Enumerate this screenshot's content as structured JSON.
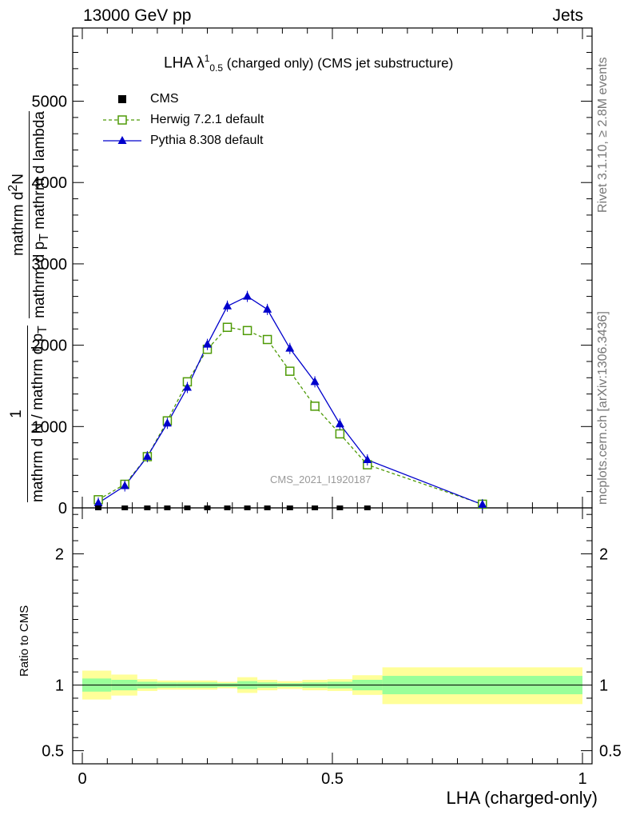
{
  "header": {
    "left": "13000 GeV pp",
    "right": "Jets"
  },
  "side_labels": {
    "rivet": "Rivet 3.1.10, ≥ 2.8M events",
    "mcplots": "mcplots.cern.ch [arXiv:1306.3436]"
  },
  "title": {
    "prefix": "LHA λ",
    "sup": "1",
    "sub": "0.5",
    "rest": " (charged only) (CMS jet substructure)"
  },
  "watermark": "CMS_2021_I1920187",
  "ylabel_main": {
    "one_num": "1",
    "one_den": "mathrm d N / mathrm d p",
    "one_den_sub": "T",
    "num": "mathrm d",
    "num_sup": "2",
    "num_tail": "N",
    "den": "mathrm d p",
    "den_sub": "T",
    "den_tail": " mathrm d lambda"
  },
  "ylabel_ratio": "Ratio to CMS",
  "xlabel": "LHA (charged-only)",
  "colors": {
    "cms": "#000000",
    "herwig": "#4e9a06",
    "pythia": "#0000cc",
    "band_inner": "#99ff99",
    "band_outer": "#ffff99"
  },
  "chart_data": [
    {
      "type": "line",
      "panel": "main",
      "xlim": [
        0,
        1
      ],
      "ylim": [
        0,
        5900
      ],
      "yticks": [
        0,
        1000,
        2000,
        3000,
        4000,
        5000
      ],
      "ytick_labels": [
        "0",
        "1000",
        "2000",
        "3000",
        "4000",
        "5000"
      ],
      "legend": {
        "position": "top-left",
        "entries": [
          "CMS",
          "Herwig 7.2.1 default",
          "Pythia 8.308 default"
        ]
      },
      "series": [
        {
          "name": "CMS",
          "marker": "filled-square",
          "x": [
            0.032,
            0.085,
            0.13,
            0.17,
            0.21,
            0.25,
            0.29,
            0.33,
            0.37,
            0.415,
            0.465,
            0.515,
            0.57
          ],
          "values": [
            0,
            0,
            0,
            0,
            0,
            0,
            0,
            0,
            0,
            0,
            0,
            0,
            0
          ]
        },
        {
          "name": "Herwig 7.2.1 default",
          "marker": "open-square",
          "x": [
            0.032,
            0.085,
            0.13,
            0.17,
            0.21,
            0.25,
            0.29,
            0.33,
            0.37,
            0.415,
            0.465,
            0.515,
            0.57,
            0.8
          ],
          "values": [
            100,
            290,
            630,
            1070,
            1550,
            1950,
            2220,
            2180,
            2070,
            1680,
            1250,
            910,
            530,
            45
          ]
        },
        {
          "name": "Pythia 8.308 default",
          "marker": "filled-triangle",
          "x": [
            0.032,
            0.085,
            0.13,
            0.17,
            0.21,
            0.25,
            0.29,
            0.33,
            0.37,
            0.415,
            0.465,
            0.515,
            0.57,
            0.8
          ],
          "values": [
            60,
            270,
            630,
            1040,
            1480,
            2010,
            2480,
            2600,
            2440,
            1960,
            1550,
            1030,
            590,
            40
          ]
        }
      ]
    },
    {
      "type": "area",
      "panel": "ratio",
      "ylabel": "Ratio to CMS",
      "xlabel": "LHA (charged-only)",
      "xlim": [
        0,
        1
      ],
      "ylim": [
        0.4,
        2.35
      ],
      "xticks": [
        0,
        0.5,
        1
      ],
      "xtick_labels": [
        "0",
        "0.5",
        "1"
      ],
      "yticks": [
        0.5,
        1,
        2
      ],
      "ytick_labels": [
        "0.5",
        "1",
        "2"
      ],
      "reference": 1,
      "bins": [
        {
          "x_lo": 0.0,
          "x_hi": 0.058,
          "inner": [
            0.95,
            1.05
          ],
          "outer": [
            0.89,
            1.11
          ]
        },
        {
          "x_lo": 0.058,
          "x_hi": 0.11,
          "inner": [
            0.96,
            1.04
          ],
          "outer": [
            0.92,
            1.08
          ]
        },
        {
          "x_lo": 0.11,
          "x_hi": 0.15,
          "inner": [
            0.975,
            1.025
          ],
          "outer": [
            0.955,
            1.045
          ]
        },
        {
          "x_lo": 0.15,
          "x_hi": 0.19,
          "inner": [
            0.98,
            1.02
          ],
          "outer": [
            0.965,
            1.035
          ]
        },
        {
          "x_lo": 0.19,
          "x_hi": 0.23,
          "inner": [
            0.98,
            1.02
          ],
          "outer": [
            0.965,
            1.035
          ]
        },
        {
          "x_lo": 0.23,
          "x_hi": 0.27,
          "inner": [
            0.98,
            1.02
          ],
          "outer": [
            0.965,
            1.035
          ]
        },
        {
          "x_lo": 0.27,
          "x_hi": 0.31,
          "inner": [
            0.985,
            1.015
          ],
          "outer": [
            0.975,
            1.025
          ]
        },
        {
          "x_lo": 0.31,
          "x_hi": 0.35,
          "inner": [
            0.97,
            1.03
          ],
          "outer": [
            0.94,
            1.06
          ]
        },
        {
          "x_lo": 0.35,
          "x_hi": 0.39,
          "inner": [
            0.98,
            1.02
          ],
          "outer": [
            0.96,
            1.04
          ]
        },
        {
          "x_lo": 0.39,
          "x_hi": 0.44,
          "inner": [
            0.985,
            1.015
          ],
          "outer": [
            0.97,
            1.03
          ]
        },
        {
          "x_lo": 0.44,
          "x_hi": 0.49,
          "inner": [
            0.98,
            1.02
          ],
          "outer": [
            0.96,
            1.04
          ]
        },
        {
          "x_lo": 0.49,
          "x_hi": 0.54,
          "inner": [
            0.975,
            1.025
          ],
          "outer": [
            0.955,
            1.045
          ]
        },
        {
          "x_lo": 0.54,
          "x_hi": 0.6,
          "inner": [
            0.96,
            1.04
          ],
          "outer": [
            0.925,
            1.075
          ]
        },
        {
          "x_lo": 0.6,
          "x_hi": 1.0,
          "inner": [
            0.93,
            1.07
          ],
          "outer": [
            0.855,
            1.135
          ]
        }
      ]
    }
  ]
}
